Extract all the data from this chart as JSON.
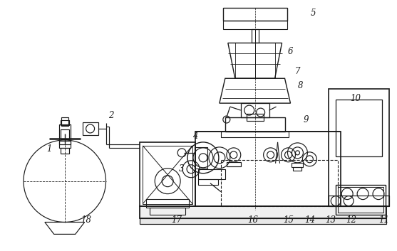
{
  "background_color": "#ffffff",
  "line_color": "#1a1a1a",
  "label_color": "#000000",
  "figsize": [
    5.57,
    3.53
  ],
  "dpi": 100,
  "lw": 0.85
}
